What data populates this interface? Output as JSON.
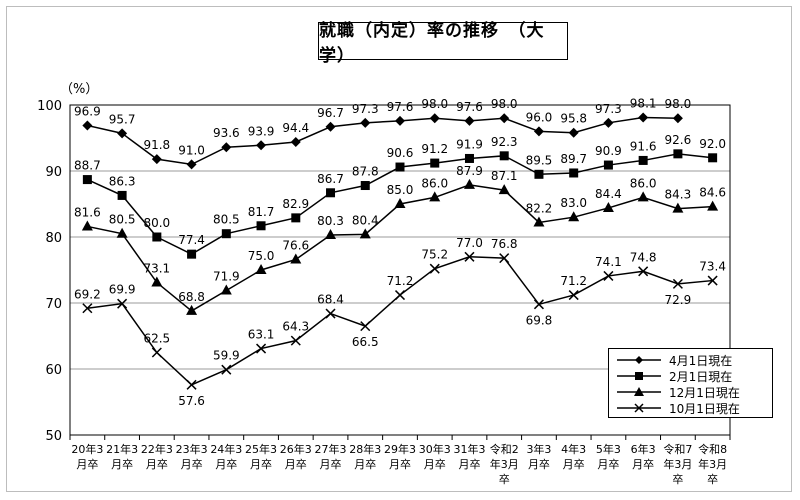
{
  "chart_data": {
    "type": "line",
    "title": "就職（内定）率の推移　（大学）",
    "ylabel": "（%）",
    "ylim": [
      50,
      100
    ],
    "yticks": [
      50,
      60,
      70,
      80,
      90,
      100
    ],
    "grid": true,
    "legend_position": "bottom-right",
    "categories": [
      [
        "20年3",
        "月卒"
      ],
      [
        "21年3",
        "月卒"
      ],
      [
        "22年3",
        "月卒"
      ],
      [
        "23年3",
        "月卒"
      ],
      [
        "24年3",
        "月卒"
      ],
      [
        "25年3",
        "月卒"
      ],
      [
        "26年3",
        "月卒"
      ],
      [
        "27年3",
        "月卒"
      ],
      [
        "28年3",
        "月卒"
      ],
      [
        "29年3",
        "月卒"
      ],
      [
        "30年3",
        "月卒"
      ],
      [
        "31年3",
        "月卒"
      ],
      [
        "令和2",
        "年3月",
        "卒"
      ],
      [
        "3年3",
        "月卒"
      ],
      [
        "4年3",
        "月卒"
      ],
      [
        "5年3",
        "月卒"
      ],
      [
        "6年3",
        "月卒"
      ],
      [
        "令和7",
        "年3月",
        "卒"
      ],
      [
        "令和8",
        "年3月",
        "卒"
      ]
    ],
    "series": [
      {
        "name": "4月1日現在",
        "marker": "diamond",
        "values": [
          96.9,
          95.7,
          91.8,
          91.0,
          93.6,
          93.9,
          94.4,
          96.7,
          97.3,
          97.6,
          98.0,
          97.6,
          98.0,
          96.0,
          95.8,
          97.3,
          98.1,
          98.0,
          null
        ]
      },
      {
        "name": "2月1日現在",
        "marker": "square",
        "values": [
          88.7,
          86.3,
          80.0,
          77.4,
          80.5,
          81.7,
          82.9,
          86.7,
          87.8,
          90.6,
          91.2,
          91.9,
          92.3,
          89.5,
          89.7,
          90.9,
          91.6,
          92.6,
          92.0
        ]
      },
      {
        "name": "12月1日現在",
        "marker": "triangle",
        "values": [
          81.6,
          80.5,
          73.1,
          68.8,
          71.9,
          75.0,
          76.6,
          80.3,
          80.4,
          85.0,
          86.0,
          87.9,
          87.1,
          82.2,
          83.0,
          84.4,
          86.0,
          84.3,
          84.6
        ]
      },
      {
        "name": "10月1日現在",
        "marker": "x",
        "values": [
          69.2,
          69.9,
          62.5,
          57.6,
          59.9,
          63.1,
          64.3,
          68.4,
          66.5,
          71.2,
          75.2,
          77.0,
          76.8,
          69.8,
          71.2,
          74.1,
          74.8,
          72.9,
          73.4
        ]
      }
    ]
  }
}
